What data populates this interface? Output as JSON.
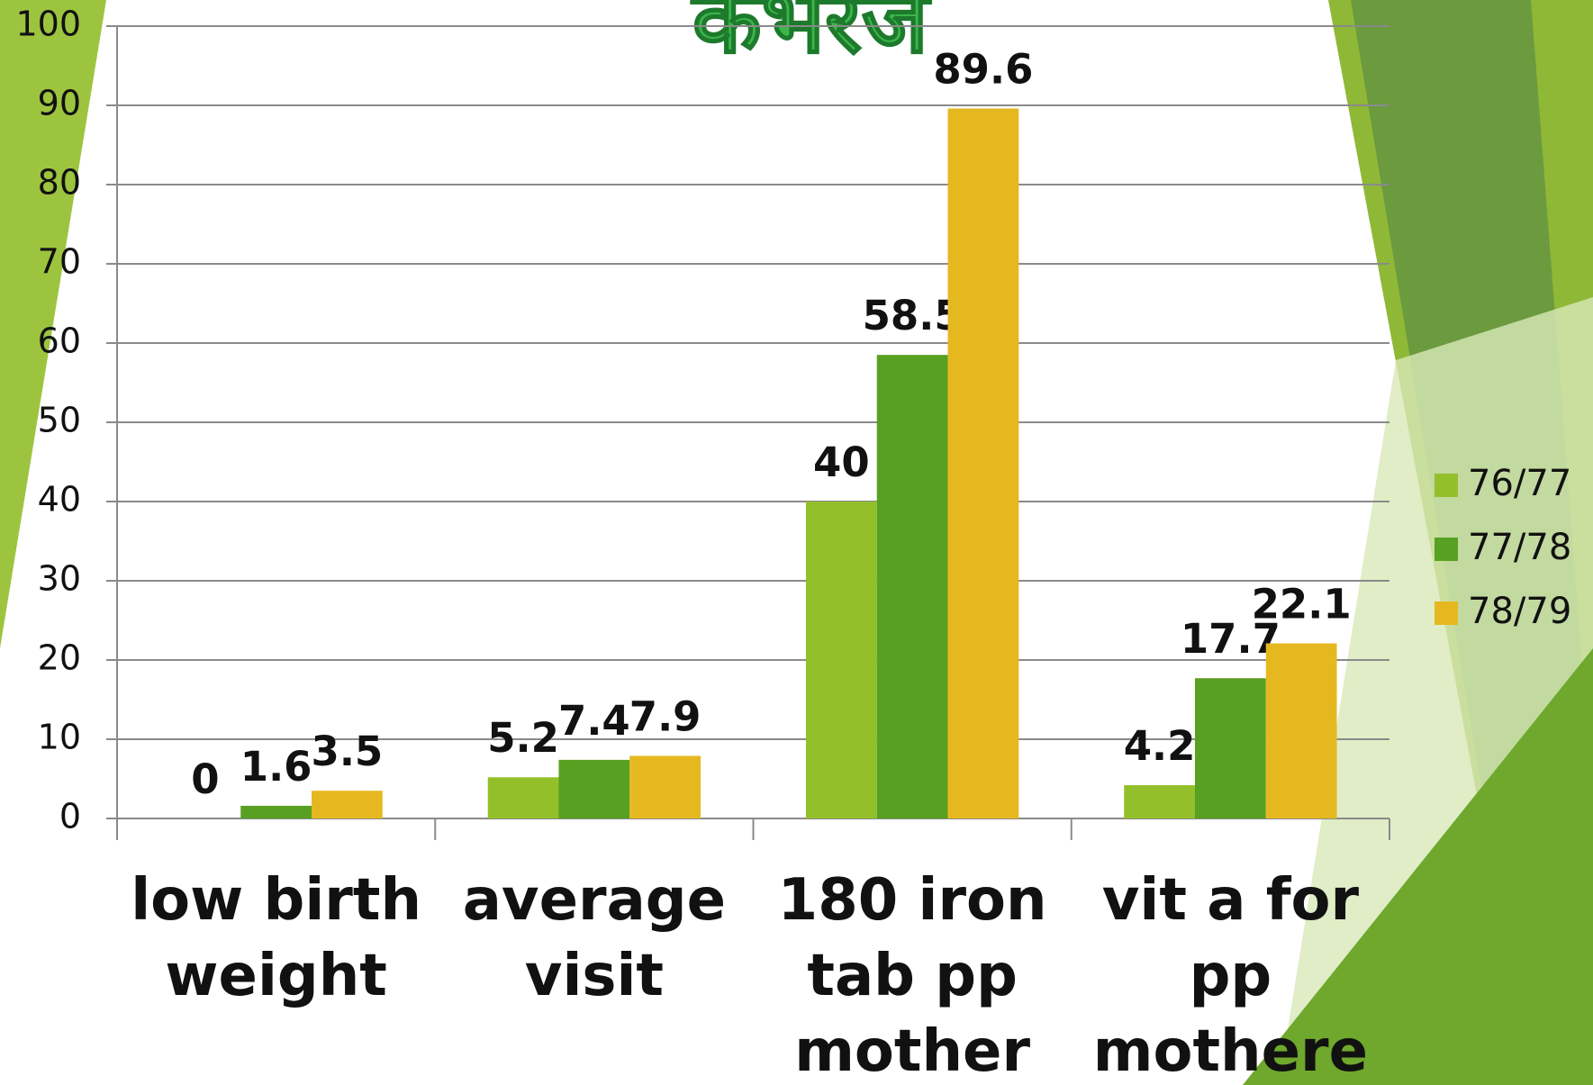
{
  "chart_data": {
    "type": "bar",
    "title": "कभरेज",
    "categories": [
      "low birth weight",
      "average visit",
      "180 iron tab pp mother",
      "vit a for pp mothere"
    ],
    "series": [
      {
        "name": "76/77",
        "color": "#93c02a",
        "values": [
          0,
          5.2,
          40,
          4.2
        ]
      },
      {
        "name": "77/78",
        "color": "#58a021",
        "values": [
          1.6,
          7.4,
          58.5,
          17.7
        ]
      },
      {
        "name": "78/79",
        "color": "#e6b820",
        "values": [
          3.5,
          7.9,
          89.6,
          22.1
        ]
      }
    ],
    "ylim": [
      0,
      100
    ],
    "yticks": [
      0,
      10,
      20,
      30,
      40,
      50,
      60,
      70,
      80,
      90,
      100
    ],
    "grid": true,
    "legend": "right"
  }
}
